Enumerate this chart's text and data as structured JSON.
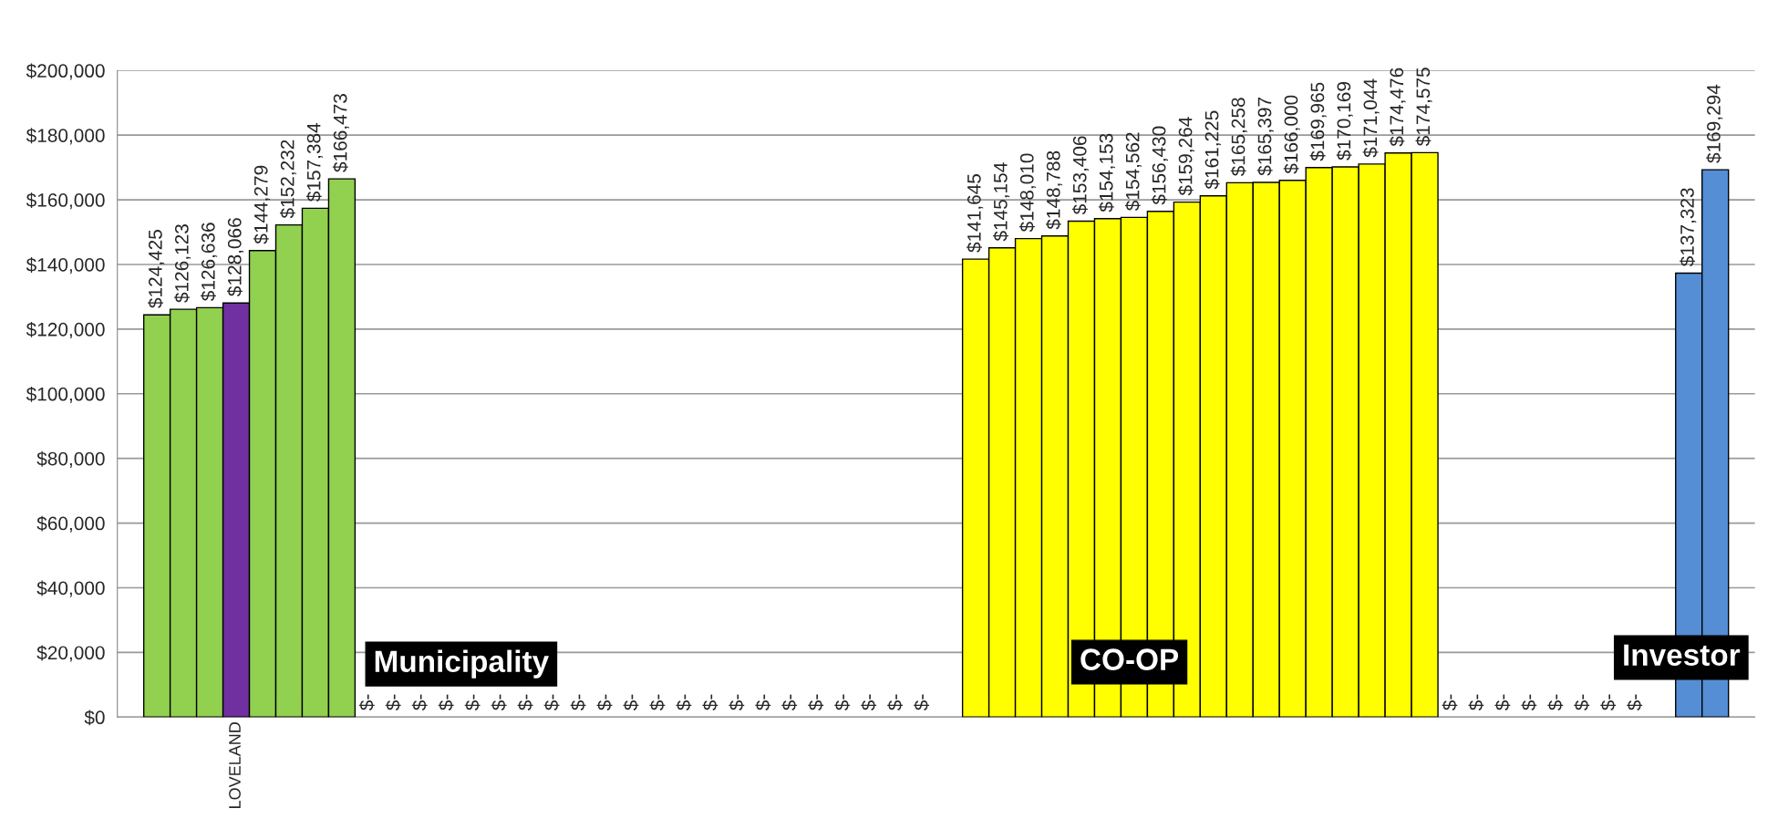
{
  "chart_data": {
    "type": "bar",
    "categories": [
      null,
      null,
      null,
      null,
      "LOVELAND",
      null,
      null,
      null,
      null,
      null,
      null,
      null,
      null,
      null,
      null,
      null,
      null,
      null,
      null,
      null,
      null,
      null,
      null,
      null,
      null,
      null,
      null,
      null,
      null,
      null,
      null,
      null,
      null,
      null,
      null,
      null,
      null,
      null,
      null,
      null,
      null,
      null,
      null,
      null,
      null,
      null,
      null,
      null,
      null,
      null,
      null,
      null,
      null,
      null,
      null,
      null,
      null,
      null,
      null,
      null,
      null,
      null
    ],
    "values": [
      null,
      124425,
      126123,
      126636,
      128066,
      144279,
      152232,
      157384,
      166473,
      0,
      0,
      0,
      0,
      0,
      0,
      0,
      0,
      0,
      0,
      0,
      0,
      0,
      0,
      0,
      0,
      0,
      0,
      0,
      0,
      0,
      0,
      null,
      141645,
      145154,
      148010,
      148788,
      153406,
      154153,
      154562,
      156430,
      159264,
      161225,
      165258,
      165397,
      166000,
      169965,
      170169,
      171044,
      174476,
      174575,
      0,
      0,
      0,
      0,
      0,
      0,
      0,
      0,
      null,
      137323,
      169294,
      null
    ],
    "value_labels": [
      null,
      "$124,425",
      "$126,123",
      "$126,636",
      "$128,066",
      "$144,279",
      "$152,232",
      "$157,384",
      "$166,473",
      "$-",
      "$-",
      "$-",
      "$-",
      "$-",
      "$-",
      "$-",
      "$-",
      "$-",
      "$-",
      "$-",
      "$-",
      "$-",
      "$-",
      "$-",
      "$-",
      "$-",
      "$-",
      "$-",
      "$-",
      "$-",
      "$-",
      null,
      "$141,645",
      "$145,154",
      "$148,010",
      "$148,788",
      "$153,406",
      "$154,153",
      "$154,562",
      "$156,430",
      "$159,264",
      "$161,225",
      "$165,258",
      "$165,397",
      "$166,000",
      "$169,965",
      "$170,169",
      "$171,044",
      "$174,476",
      "$174,575",
      "$-",
      "$-",
      "$-",
      "$-",
      "$-",
      "$-",
      "$-",
      "$-",
      null,
      "$137,323",
      "$169,294",
      null
    ],
    "colors": [
      null,
      "#92d050",
      "#92d050",
      "#92d050",
      "#7030a0",
      "#92d050",
      "#92d050",
      "#92d050",
      "#92d050",
      null,
      null,
      null,
      null,
      null,
      null,
      null,
      null,
      null,
      null,
      null,
      null,
      null,
      null,
      null,
      null,
      null,
      null,
      null,
      null,
      null,
      null,
      null,
      "#ffff00",
      "#ffff00",
      "#ffff00",
      "#ffff00",
      "#ffff00",
      "#ffff00",
      "#ffff00",
      "#ffff00",
      "#ffff00",
      "#ffff00",
      "#ffff00",
      "#ffff00",
      "#ffff00",
      "#ffff00",
      "#ffff00",
      "#ffff00",
      "#ffff00",
      "#ffff00",
      null,
      null,
      null,
      null,
      null,
      null,
      null,
      null,
      null,
      "#558ed5",
      "#558ed5",
      null
    ],
    "ylim": [
      0,
      200000
    ],
    "yticks": [
      {
        "value": 0,
        "label": "$0"
      },
      {
        "value": 20000,
        "label": "$20,000"
      },
      {
        "value": 40000,
        "label": "$40,000"
      },
      {
        "value": 60000,
        "label": "$60,000"
      },
      {
        "value": 80000,
        "label": "$80,000"
      },
      {
        "value": 100000,
        "label": "$100,000"
      },
      {
        "value": 120000,
        "label": "$120,000"
      },
      {
        "value": 140000,
        "label": "$140,000"
      },
      {
        "value": 160000,
        "label": "$160,000"
      },
      {
        "value": 180000,
        "label": "$180,000"
      },
      {
        "value": 200000,
        "label": "$200,000"
      }
    ],
    "grid": "y",
    "legend": false,
    "annotations": [
      "Municipality",
      "CO-OP",
      "Investor"
    ]
  }
}
